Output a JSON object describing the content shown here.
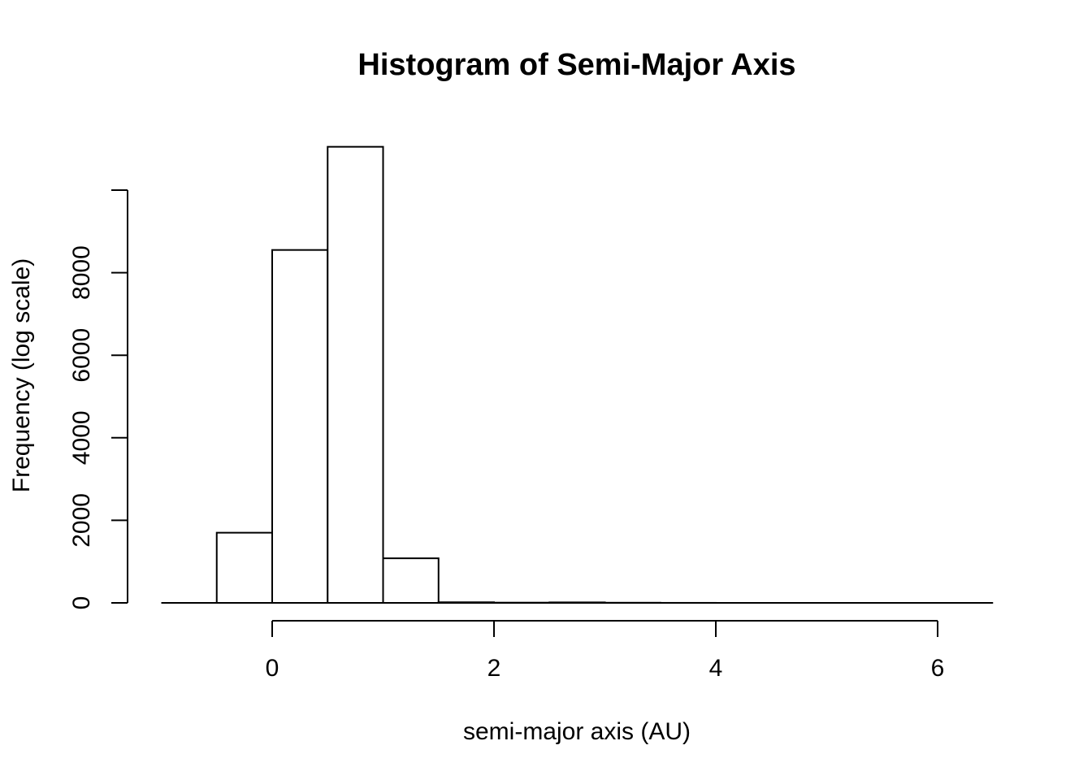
{
  "chart_data": {
    "type": "bar",
    "title": "Histogram of Semi-Major Axis",
    "xlabel": "semi-major axis (AU)",
    "ylabel": "Frequency (log scale)",
    "bins": [
      {
        "x0": -0.5,
        "x1": 0.0,
        "value": 1700
      },
      {
        "x0": 0.0,
        "x1": 0.5,
        "value": 8550
      },
      {
        "x0": 0.5,
        "x1": 1.0,
        "value": 11050
      },
      {
        "x0": 1.0,
        "x1": 1.5,
        "value": 1080
      },
      {
        "x0": 1.5,
        "x1": 2.0,
        "value": 15
      },
      {
        "x0": 2.0,
        "x1": 2.5,
        "value": 6
      },
      {
        "x0": 2.5,
        "x1": 3.0,
        "value": 12
      },
      {
        "x0": 3.0,
        "x1": 3.5,
        "value": 4
      },
      {
        "x0": 3.5,
        "x1": 4.0,
        "value": 1
      },
      {
        "x0": 4.0,
        "x1": 4.5,
        "value": 0
      },
      {
        "x0": 4.5,
        "x1": 5.0,
        "value": 0
      },
      {
        "x0": 5.0,
        "x1": 5.5,
        "value": 0
      },
      {
        "x0": 5.5,
        "x1": 6.0,
        "value": 0
      },
      {
        "x0": 6.0,
        "x1": 6.5,
        "value": 0
      }
    ],
    "xlim": [
      -1.0,
      6.5
    ],
    "ylim": [
      0,
      11050
    ],
    "xticks": [
      {
        "value": 0,
        "label": "0"
      },
      {
        "value": 2,
        "label": "2"
      },
      {
        "value": 4,
        "label": "4"
      },
      {
        "value": 6,
        "label": "6"
      }
    ],
    "yticks": [
      {
        "value": 0,
        "label": "0"
      },
      {
        "value": 2000,
        "label": "2000"
      },
      {
        "value": 4000,
        "label": "4000"
      },
      {
        "value": 6000,
        "label": "6000"
      },
      {
        "value": 8000,
        "label": "8000"
      },
      {
        "value": 10000,
        "label": ""
      }
    ],
    "grid": false,
    "legend": "none"
  }
}
